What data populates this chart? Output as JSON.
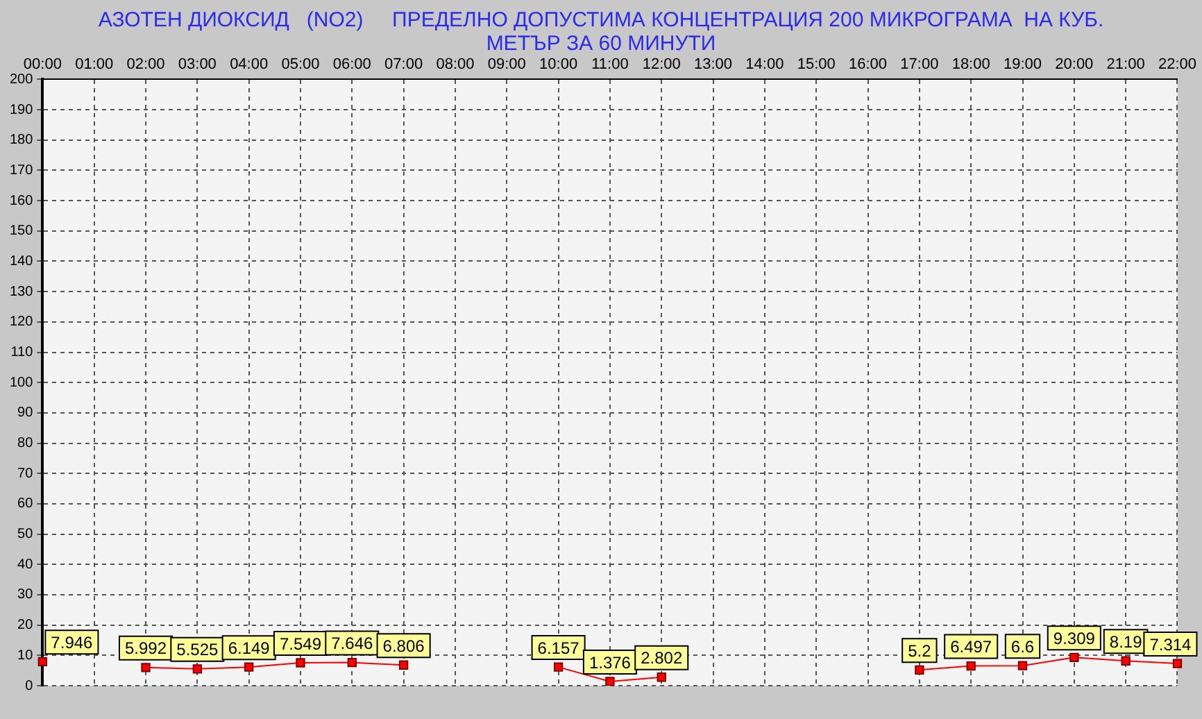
{
  "chart_data": {
    "type": "line",
    "title": "АЗОТЕН ДИОКСИД   (NO2)     ПРЕДЕЛНО ДОПУСТИМА КОНЦЕНТРАЦИЯ 200 МИКРОГРАМА  НА КУБ. МЕТЪР ЗА 60 МИНУТИ",
    "categories": [
      "00:00",
      "01:00",
      "02:00",
      "03:00",
      "04:00",
      "05:00",
      "06:00",
      "07:00",
      "08:00",
      "09:00",
      "10:00",
      "11:00",
      "12:00",
      "13:00",
      "14:00",
      "15:00",
      "16:00",
      "17:00",
      "18:00",
      "19:00",
      "20:00",
      "21:00",
      "22:00"
    ],
    "series": [
      {
        "color": "#ff0000",
        "values": [
          7.946,
          null,
          5.992,
          5.525,
          6.149,
          7.549,
          7.646,
          6.806,
          null,
          null,
          6.157,
          1.376,
          2.802,
          null,
          null,
          null,
          null,
          5.2,
          6.497,
          6.6,
          9.309,
          8.19,
          7.314
        ]
      }
    ],
    "ylim": [
      0,
      200
    ],
    "yticks": [
      0,
      10,
      20,
      30,
      40,
      50,
      60,
      70,
      80,
      90,
      100,
      110,
      120,
      130,
      140,
      150,
      160,
      170,
      180,
      190,
      200
    ],
    "grid": true,
    "legend": false,
    "marker": "square",
    "data_labels": true
  }
}
